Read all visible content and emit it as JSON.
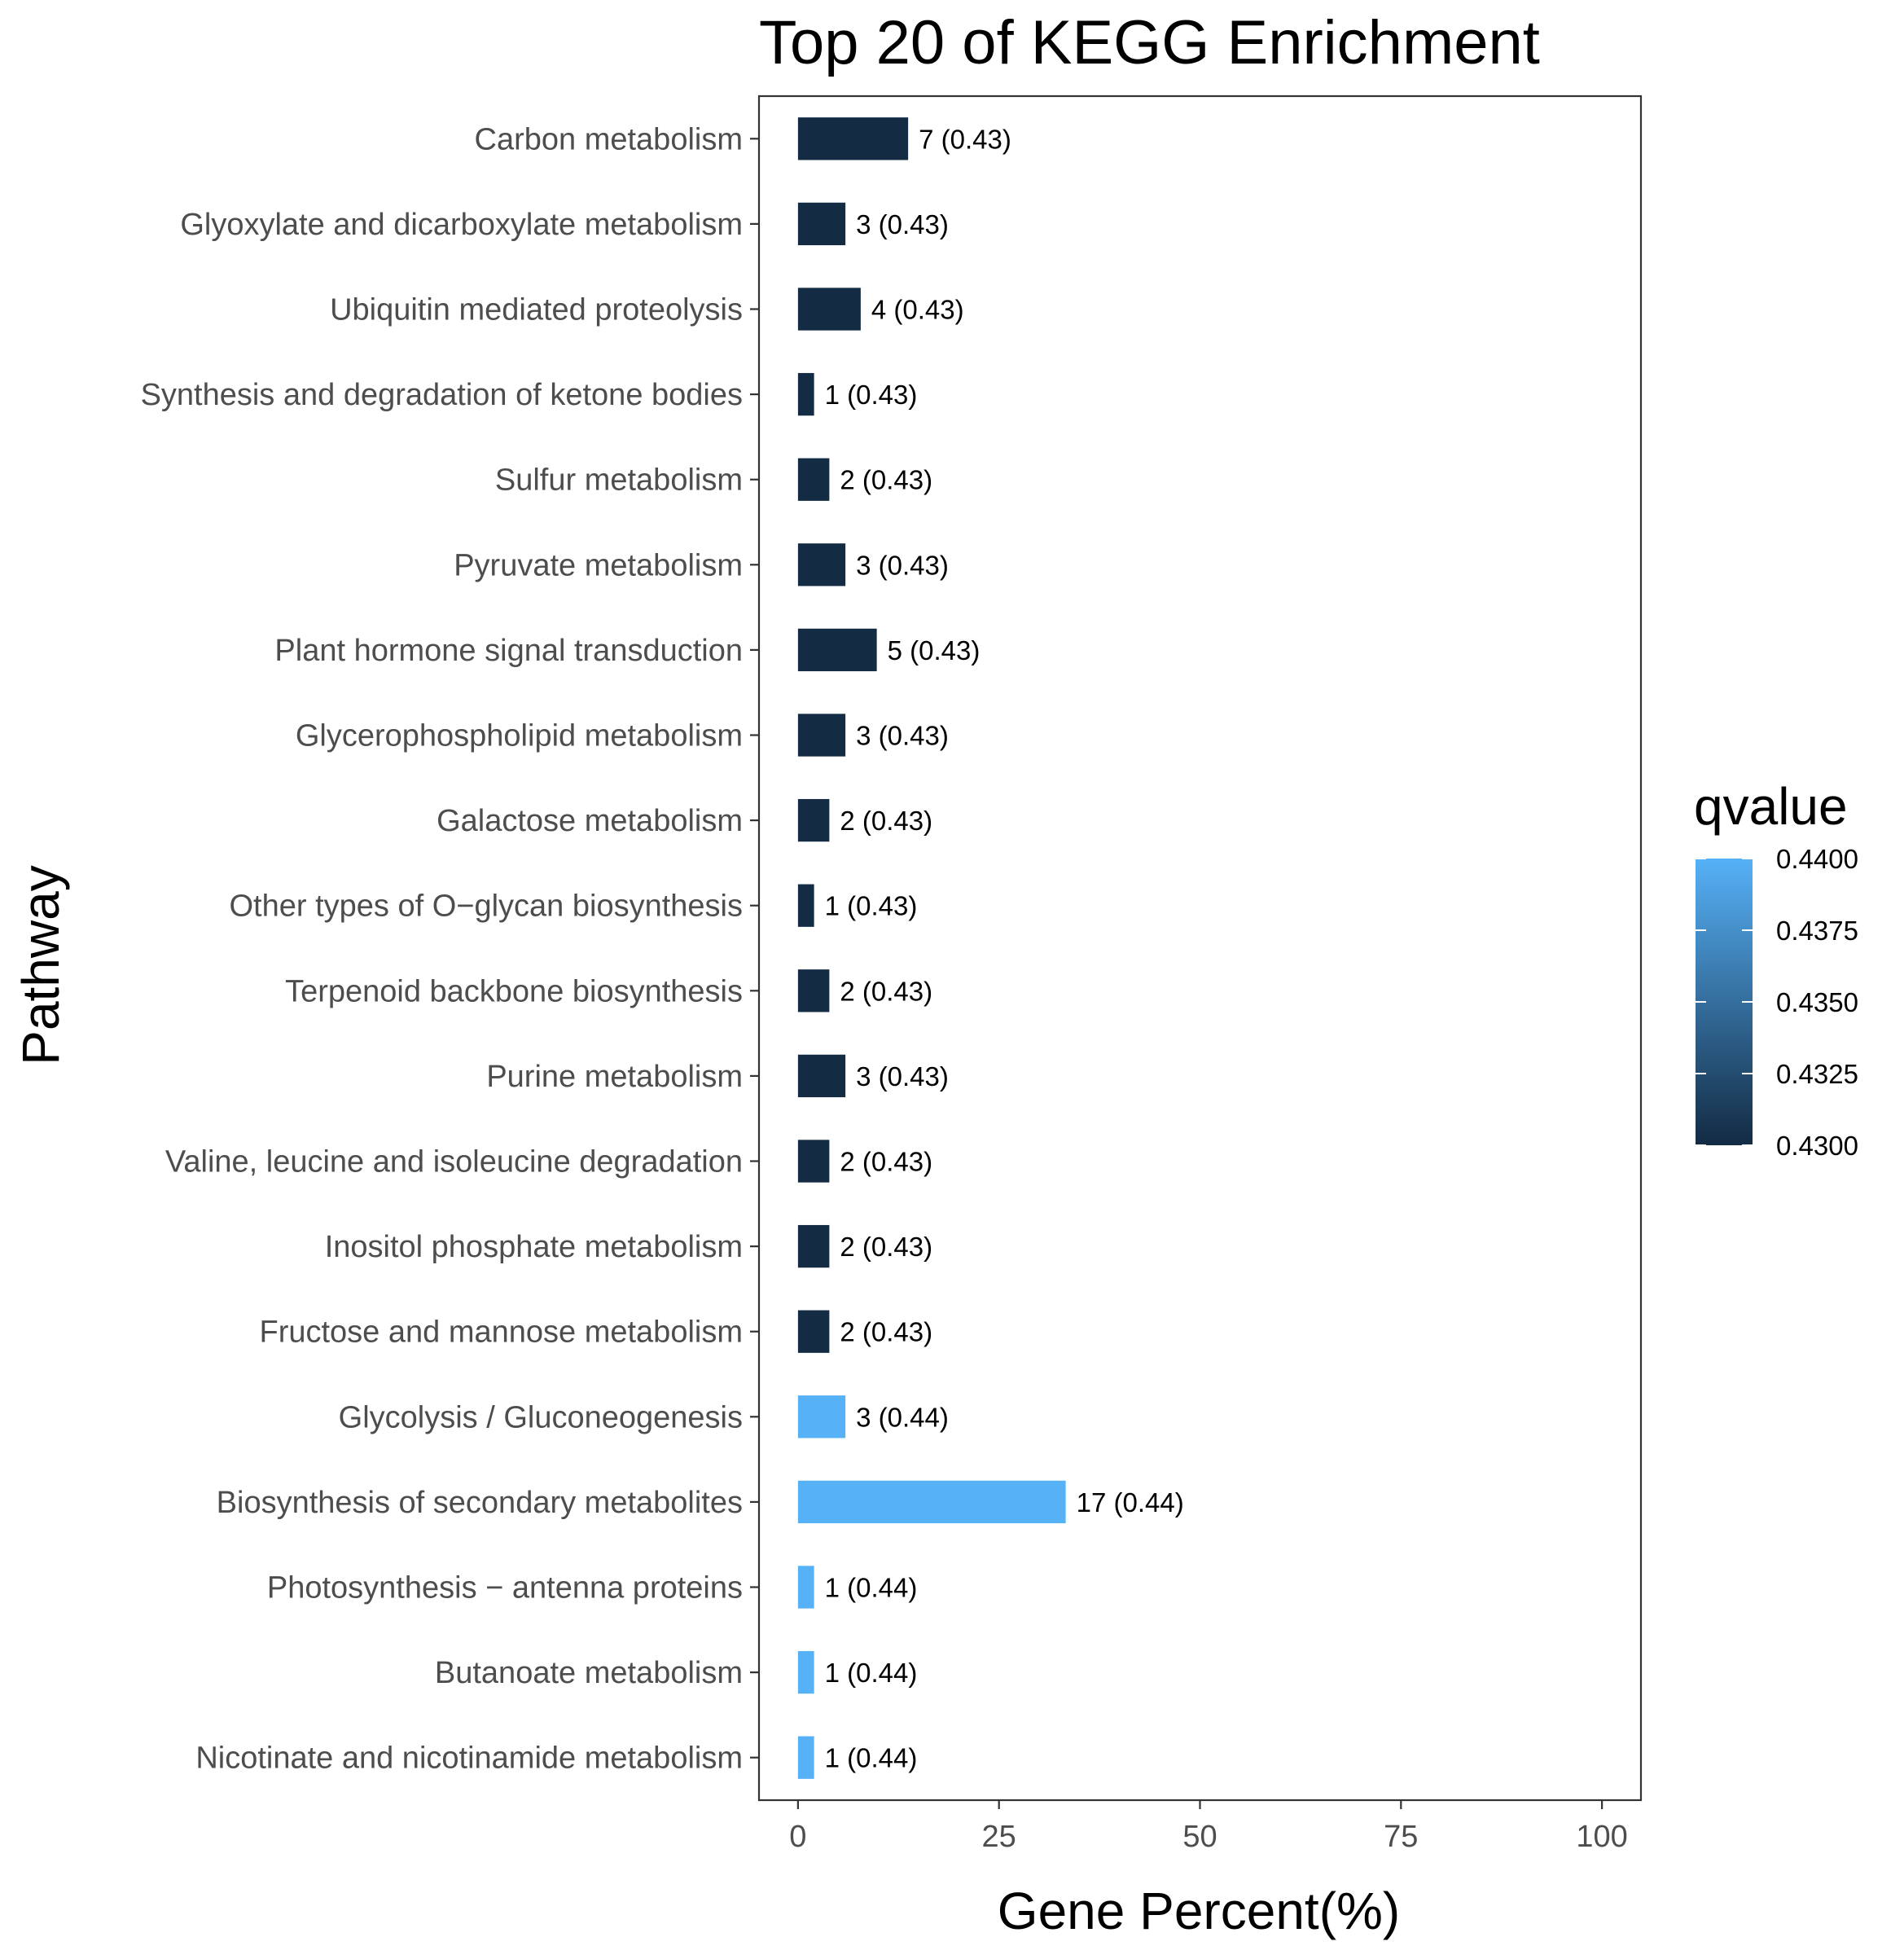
{
  "chart_data": {
    "type": "bar",
    "orientation": "horizontal",
    "title": "Top 20 of KEGG Enrichment",
    "xlabel": "Gene Percent(%)",
    "ylabel": "Pathway",
    "xlim": [
      -4.85,
      104.85
    ],
    "x_ticks": [
      0,
      25,
      50,
      75,
      100
    ],
    "grid": false,
    "categories": [
      "Carbon metabolism",
      "Glyoxylate and dicarboxylate metabolism",
      "Ubiquitin mediated proteolysis",
      "Synthesis and degradation of ketone bodies",
      "Sulfur metabolism",
      "Pyruvate metabolism",
      "Plant hormone signal transduction",
      "Glycerophospholipid metabolism",
      "Galactose metabolism",
      "Other types of O−glycan biosynthesis",
      "Terpenoid backbone biosynthesis",
      "Purine metabolism",
      "Valine, leucine and isoleucine degradation",
      "Inositol phosphate metabolism",
      "Fructose and mannose metabolism",
      "Glycolysis / Gluconeogenesis",
      "Biosynthesis of secondary metabolites",
      "Photosynthesis − antenna proteins",
      "Butanoate metabolism",
      "Nicotinate and nicotinamide metabolism"
    ],
    "values": [
      13.7,
      5.9,
      7.8,
      2.0,
      3.9,
      5.9,
      9.8,
      5.9,
      3.9,
      2.0,
      3.9,
      5.9,
      3.9,
      3.9,
      3.9,
      5.9,
      33.3,
      2.0,
      2.0,
      2.0
    ],
    "gene_counts": [
      7,
      3,
      4,
      1,
      2,
      3,
      5,
      3,
      2,
      1,
      2,
      3,
      2,
      2,
      2,
      3,
      17,
      1,
      1,
      1
    ],
    "qvalues": [
      0.43,
      0.43,
      0.43,
      0.43,
      0.43,
      0.43,
      0.43,
      0.43,
      0.43,
      0.43,
      0.43,
      0.43,
      0.43,
      0.43,
      0.43,
      0.44,
      0.44,
      0.44,
      0.44,
      0.44
    ],
    "bar_labels": [
      "7 (0.43)",
      "3 (0.43)",
      "4 (0.43)",
      "1 (0.43)",
      "2 (0.43)",
      "3 (0.43)",
      "5 (0.43)",
      "3 (0.43)",
      "2 (0.43)",
      "1 (0.43)",
      "2 (0.43)",
      "3 (0.43)",
      "2 (0.43)",
      "2 (0.43)",
      "2 (0.43)",
      "3 (0.44)",
      "17 (0.44)",
      "1 (0.44)",
      "1 (0.44)",
      "1 (0.44)"
    ],
    "legend": {
      "title": "qvalue",
      "placement": "right",
      "type": "colorbar",
      "range": [
        0.43,
        0.44
      ],
      "ticks": [
        0.44,
        0.4375,
        0.435,
        0.4325,
        0.43
      ],
      "tick_labels": [
        "0.4400",
        "0.4375",
        "0.4350",
        "0.4325",
        "0.4300"
      ],
      "low_color": "#132B43",
      "high_color": "#56B1F7"
    }
  }
}
